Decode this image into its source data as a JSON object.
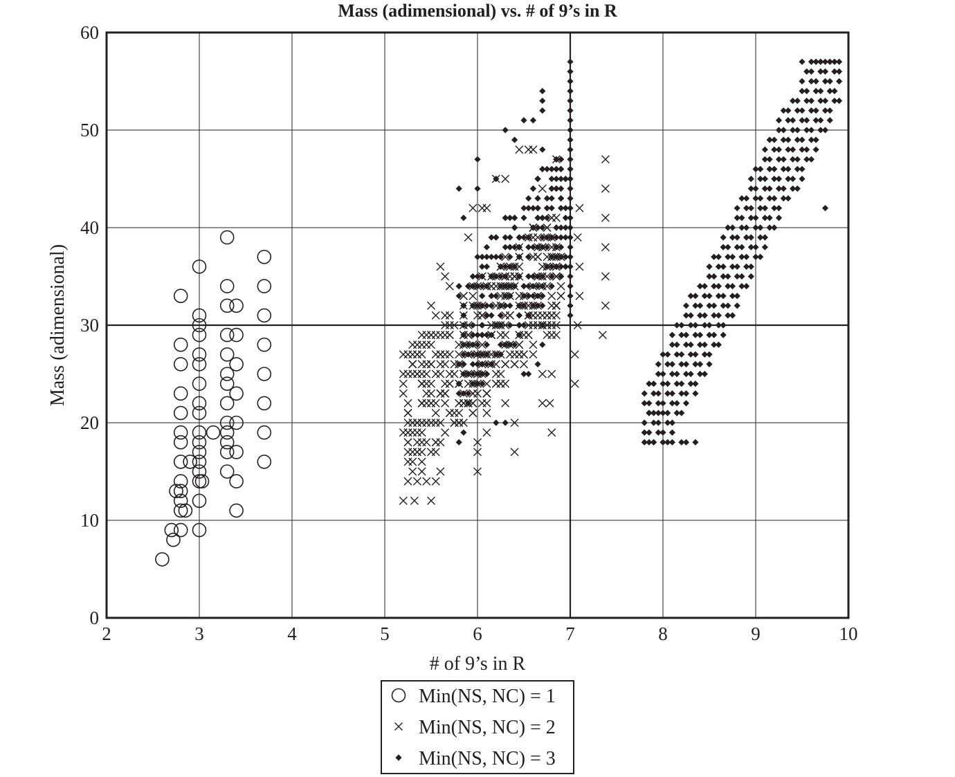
{
  "chart_data": {
    "type": "scatter",
    "title": "Mass (adimensional) vs. # of 9’s in R",
    "xlabel": "# of 9’s in R",
    "ylabel": "Mass (adimensional)",
    "xlim": [
      2,
      10
    ],
    "ylim": [
      0,
      60
    ],
    "x_ticks": [
      "2",
      "3",
      "4",
      "5",
      "6",
      "7",
      "8",
      "9",
      "10"
    ],
    "y_ticks": [
      "0",
      "10",
      "20",
      "30",
      "40",
      "50",
      "60"
    ],
    "grid": true,
    "emphasized_lines": {
      "x": 7,
      "y": 30
    },
    "legend_position": "bottom-center",
    "colors": {
      "ink": "#231f20",
      "background": "#ffffff"
    },
    "series": [
      {
        "name": "Min(NS, NC) = 1",
        "marker": "circle-open",
        "points": [
          [
            2.6,
            6
          ],
          [
            2.7,
            9
          ],
          [
            2.72,
            8
          ],
          [
            2.8,
            9
          ],
          [
            2.8,
            11
          ],
          [
            2.8,
            12
          ],
          [
            2.8,
            13
          ],
          [
            2.8,
            14
          ],
          [
            2.8,
            16
          ],
          [
            2.8,
            18
          ],
          [
            2.8,
            19
          ],
          [
            2.8,
            21
          ],
          [
            2.8,
            23
          ],
          [
            2.8,
            26
          ],
          [
            2.8,
            28
          ],
          [
            2.8,
            33
          ],
          [
            2.75,
            13
          ],
          [
            2.85,
            11
          ],
          [
            2.9,
            16
          ],
          [
            3.0,
            9
          ],
          [
            3.0,
            12
          ],
          [
            3.0,
            14
          ],
          [
            3.0,
            15
          ],
          [
            3.0,
            16
          ],
          [
            3.0,
            17
          ],
          [
            3.0,
            18
          ],
          [
            3.0,
            19
          ],
          [
            3.0,
            21
          ],
          [
            3.0,
            22
          ],
          [
            3.0,
            24
          ],
          [
            3.0,
            26
          ],
          [
            3.0,
            27
          ],
          [
            3.0,
            29
          ],
          [
            3.0,
            30
          ],
          [
            3.0,
            31
          ],
          [
            3.0,
            36
          ],
          [
            3.03,
            14
          ],
          [
            3.15,
            19
          ],
          [
            3.3,
            15
          ],
          [
            3.3,
            17
          ],
          [
            3.3,
            18
          ],
          [
            3.3,
            19
          ],
          [
            3.3,
            20
          ],
          [
            3.3,
            22
          ],
          [
            3.3,
            24
          ],
          [
            3.3,
            25
          ],
          [
            3.3,
            27
          ],
          [
            3.3,
            29
          ],
          [
            3.3,
            32
          ],
          [
            3.3,
            34
          ],
          [
            3.3,
            39
          ],
          [
            3.4,
            11
          ],
          [
            3.4,
            14
          ],
          [
            3.4,
            17
          ],
          [
            3.4,
            20
          ],
          [
            3.4,
            23
          ],
          [
            3.4,
            26
          ],
          [
            3.4,
            29
          ],
          [
            3.4,
            32
          ],
          [
            3.7,
            16
          ],
          [
            3.7,
            19
          ],
          [
            3.7,
            22
          ],
          [
            3.7,
            25
          ],
          [
            3.7,
            28
          ],
          [
            3.7,
            31
          ],
          [
            3.7,
            34
          ],
          [
            3.7,
            37
          ]
        ]
      },
      {
        "name": "Min(NS, NC) = 2",
        "marker": "x",
        "generated": {
          "seed": 7,
          "count": 360,
          "x_range": [
            5.2,
            6.9
          ],
          "center_a": -28,
          "center_b": 9.3,
          "spread": 6.5,
          "y_range": [
            12,
            48
          ]
        },
        "points": [
          [
            5.2,
            12
          ],
          [
            5.32,
            12
          ],
          [
            5.5,
            12
          ],
          [
            5.3,
            15
          ],
          [
            5.35,
            14
          ],
          [
            5.4,
            15
          ],
          [
            5.45,
            14
          ],
          [
            5.55,
            14
          ],
          [
            5.6,
            15
          ],
          [
            5.35,
            19
          ],
          [
            5.4,
            19
          ],
          [
            5.4,
            29
          ],
          [
            5.4,
            22
          ],
          [
            5.4,
            24
          ],
          [
            5.5,
            32
          ],
          [
            5.55,
            31
          ],
          [
            5.6,
            36
          ],
          [
            5.65,
            35
          ],
          [
            5.7,
            34
          ],
          [
            6.0,
            15
          ],
          [
            6.0,
            17
          ],
          [
            6.0,
            18
          ],
          [
            6.1,
            19
          ],
          [
            6.1,
            21
          ],
          [
            6.4,
            17
          ],
          [
            6.4,
            20
          ],
          [
            6.3,
            22
          ],
          [
            6.3,
            24
          ],
          [
            6.7,
            22
          ],
          [
            6.78,
            22
          ],
          [
            6.8,
            19
          ],
          [
            6.7,
            25
          ],
          [
            6.8,
            25
          ],
          [
            6.6,
            27
          ],
          [
            6.6,
            30
          ],
          [
            6.8,
            31
          ],
          [
            6.8,
            33
          ],
          [
            6.85,
            35
          ],
          [
            6.8,
            37
          ],
          [
            6.85,
            41
          ],
          [
            6.85,
            47
          ],
          [
            6.6,
            48
          ],
          [
            6.55,
            48
          ],
          [
            6.7,
            44
          ],
          [
            6.45,
            48
          ],
          [
            6.2,
            45
          ],
          [
            6.3,
            45
          ],
          [
            5.9,
            39
          ],
          [
            5.95,
            42
          ],
          [
            6.05,
            42
          ],
          [
            6.1,
            42
          ],
          [
            7.05,
            24
          ],
          [
            7.05,
            27
          ],
          [
            7.08,
            30
          ],
          [
            7.1,
            33
          ],
          [
            7.1,
            36
          ],
          [
            7.08,
            39
          ],
          [
            7.1,
            42
          ],
          [
            7.35,
            29
          ],
          [
            7.38,
            32
          ],
          [
            7.38,
            35
          ],
          [
            7.38,
            38
          ],
          [
            7.38,
            41
          ],
          [
            7.38,
            44
          ],
          [
            7.38,
            47
          ]
        ]
      },
      {
        "name": "Min(NS, NC) = 3",
        "marker": "diamond-filled",
        "generated": {
          "seed": 13,
          "count": 330,
          "x_range": [
            5.8,
            6.95
          ],
          "center_a": -44,
          "center_b": 12.4,
          "spread": 7,
          "y_range": [
            18,
            54
          ]
        },
        "columns": [
          {
            "x": 7.0,
            "y_min": 31,
            "y_max": 57,
            "step": 1
          }
        ],
        "band": {
          "x_min": 7.8,
          "x_max": 9.9,
          "x_step": 0.05,
          "y_step": 1,
          "centerline": [
            [
              7.8,
              18
            ],
            [
              9.9,
              58
            ]
          ],
          "half_width": 5.5,
          "y_floor": 18,
          "y_ceiling": 57
        },
        "points": [
          [
            5.8,
            18
          ],
          [
            5.85,
            19
          ],
          [
            5.8,
            44
          ],
          [
            5.85,
            41
          ],
          [
            6.0,
            44
          ],
          [
            6.0,
            47
          ],
          [
            6.2,
            45
          ],
          [
            6.3,
            50
          ],
          [
            6.4,
            49
          ],
          [
            6.5,
            51
          ],
          [
            6.6,
            51
          ],
          [
            6.7,
            52
          ],
          [
            6.7,
            53
          ],
          [
            6.7,
            54
          ],
          [
            6.7,
            48
          ],
          [
            6.7,
            46
          ],
          [
            6.65,
            26
          ],
          [
            6.7,
            28
          ],
          [
            6.7,
            30
          ],
          [
            6.55,
            25
          ],
          [
            6.5,
            25
          ],
          [
            6.2,
            20
          ],
          [
            6.3,
            20
          ],
          [
            7.8,
            18
          ],
          [
            7.9,
            18
          ],
          [
            8.0,
            18
          ],
          [
            8.1,
            18
          ],
          [
            8.2,
            18
          ],
          [
            8.25,
            18
          ],
          [
            8.35,
            18
          ],
          [
            7.85,
            21
          ],
          [
            7.95,
            21
          ],
          [
            9.75,
            42
          ],
          [
            9.5,
            57
          ],
          [
            9.6,
            57
          ],
          [
            9.65,
            57
          ],
          [
            9.7,
            57
          ],
          [
            9.75,
            57
          ],
          [
            9.8,
            57
          ],
          [
            9.85,
            57
          ],
          [
            9.9,
            57
          ]
        ]
      }
    ]
  }
}
